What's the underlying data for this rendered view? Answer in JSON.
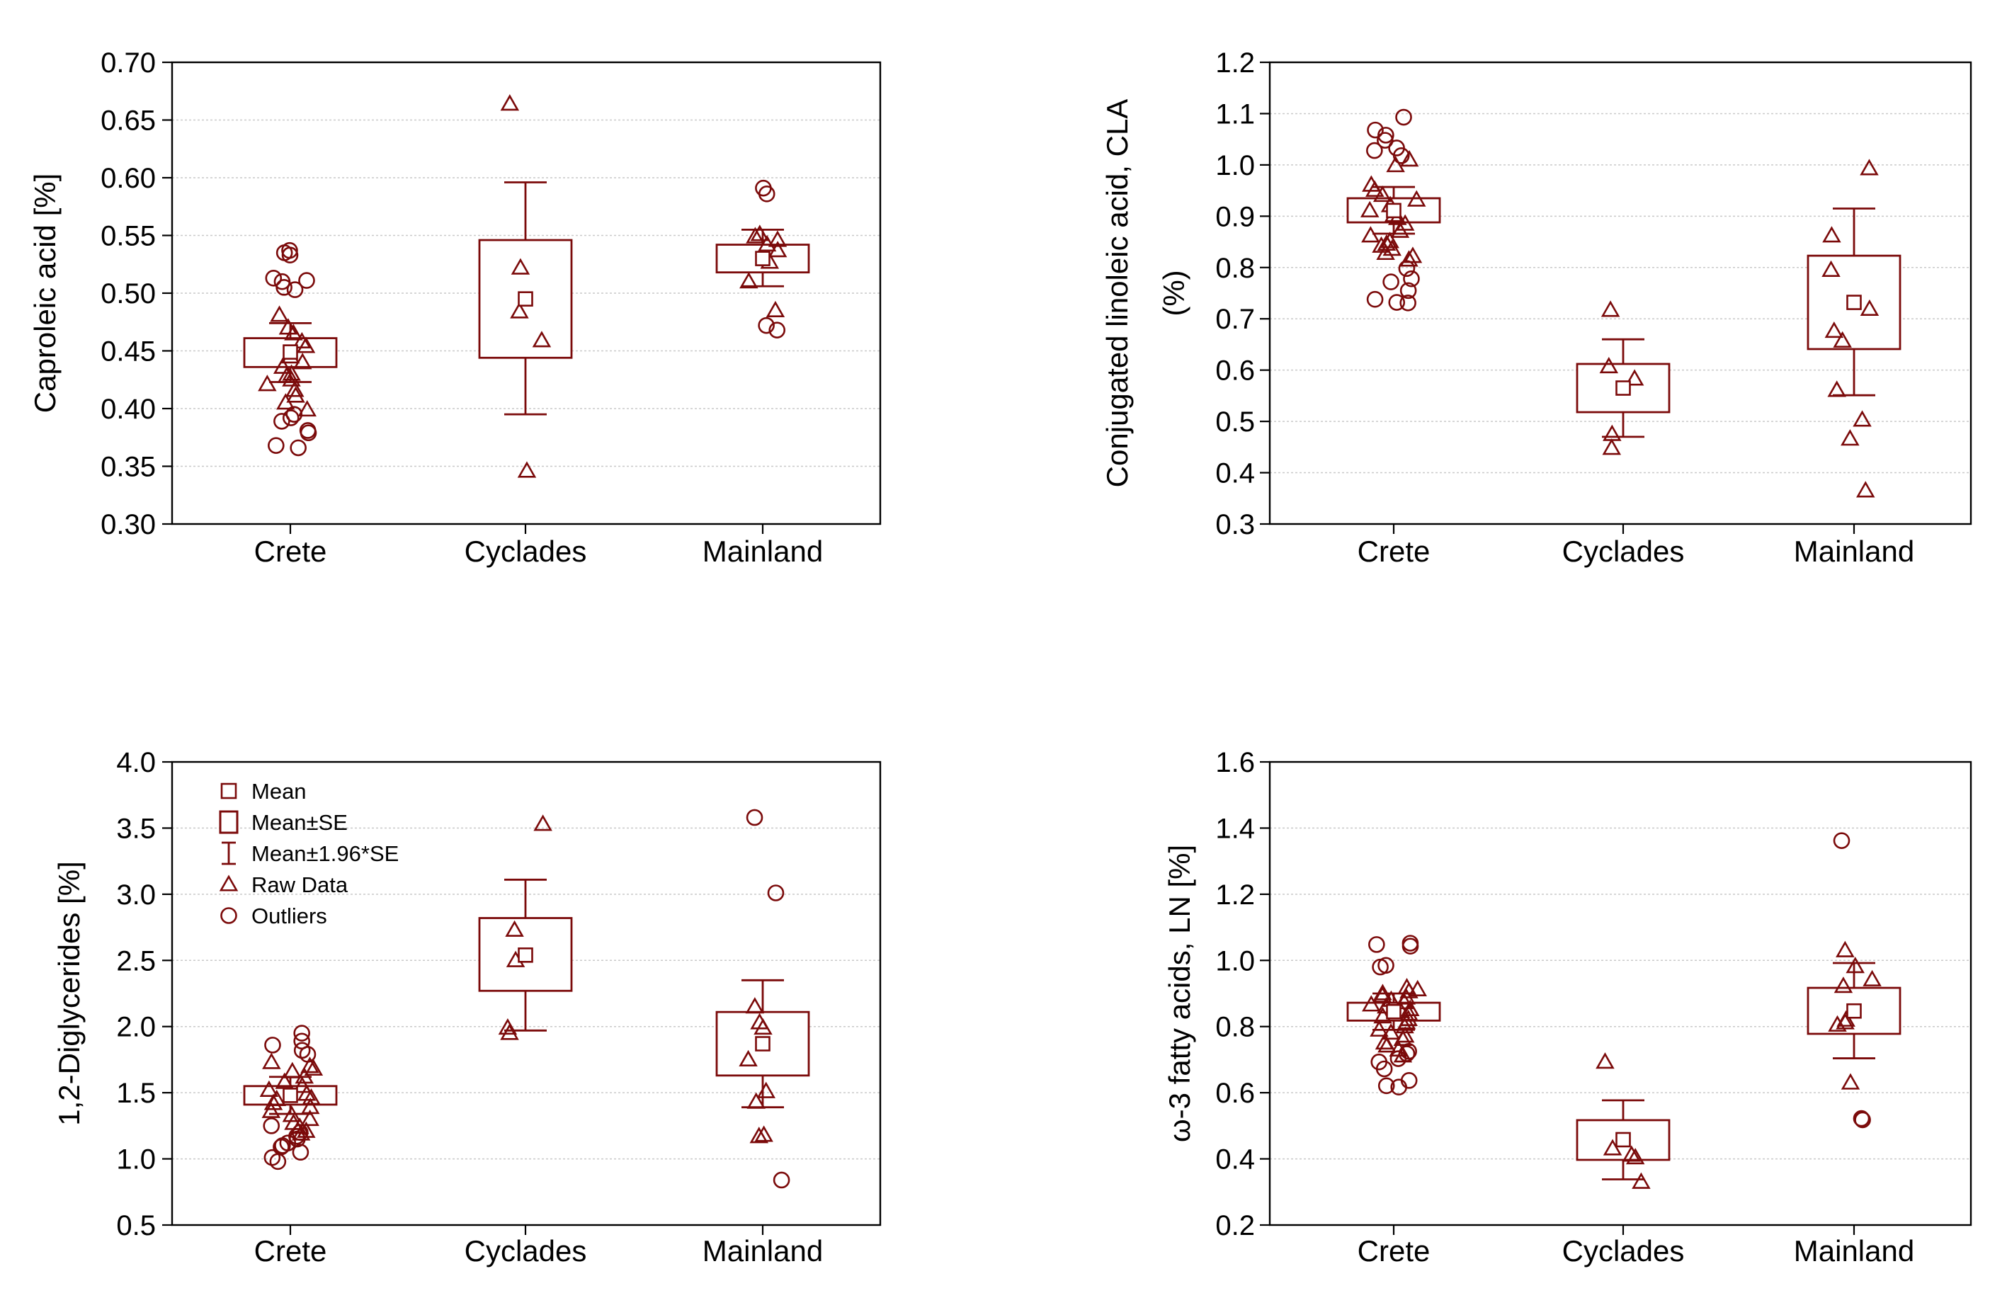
{
  "colors": {
    "mark": "#7b0a0a",
    "grid": "#c9c9c9",
    "axis": "#000000"
  },
  "legend": {
    "items": [
      {
        "symbol": "mean",
        "label": "Mean"
      },
      {
        "symbol": "box",
        "label": "Mean±SE"
      },
      {
        "symbol": "whisker",
        "label": "Mean±1.96*SE"
      },
      {
        "symbol": "triangle",
        "label": "Raw Data"
      },
      {
        "symbol": "circle",
        "label": "Outliers"
      }
    ]
  },
  "chart_data": [
    {
      "type": "box",
      "panel": "top-left",
      "ylabel": "Caproleic acid [%]",
      "ylim": [
        0.3,
        0.7
      ],
      "yticks": [
        "0.30",
        "0.35",
        "0.40",
        "0.45",
        "0.50",
        "0.55",
        "0.60",
        "0.65",
        "0.70"
      ],
      "categories": [
        "Crete",
        "Cyclades",
        "Mainland"
      ],
      "groups": [
        {
          "mean": 0.449,
          "se_low": 0.436,
          "se_high": 0.461,
          "ci_low": 0.423,
          "ci_high": 0.474,
          "raw": [
            0.458,
            0.465,
            0.47,
            0.481,
            0.454,
            0.44,
            0.445,
            0.43,
            0.425,
            0.421,
            0.416,
            0.411,
            0.405,
            0.399,
            0.436,
            0.428
          ],
          "outliers": [
            0.537,
            0.535,
            0.533,
            0.513,
            0.511,
            0.51,
            0.505,
            0.503,
            0.395,
            0.392,
            0.389,
            0.381,
            0.379,
            0.368,
            0.366
          ]
        },
        {
          "mean": 0.495,
          "se_low": 0.444,
          "se_high": 0.546,
          "ci_low": 0.395,
          "ci_high": 0.596,
          "raw": [
            0.664,
            0.522,
            0.484,
            0.459,
            0.346
          ],
          "outliers": []
        },
        {
          "mean": 0.53,
          "se_low": 0.518,
          "se_high": 0.542,
          "ci_low": 0.506,
          "ci_high": 0.555,
          "raw": [
            0.551,
            0.549,
            0.546,
            0.542,
            0.537,
            0.527,
            0.51,
            0.485
          ],
          "outliers": [
            0.591,
            0.586,
            0.472,
            0.468
          ]
        }
      ]
    },
    {
      "type": "box",
      "panel": "top-right",
      "ylabel_lines": [
        "Conjugated linoleic acid, CLA",
        "(%)"
      ],
      "ylim": [
        0.3,
        1.2
      ],
      "yticks": [
        "0.3",
        "0.4",
        "0.5",
        "0.6",
        "0.7",
        "0.8",
        "0.9",
        "1.0",
        "1.1",
        "1.2"
      ],
      "categories": [
        "Crete",
        "Cyclades",
        "Mainland"
      ],
      "groups": [
        {
          "mean": 0.911,
          "se_low": 0.888,
          "se_high": 0.935,
          "ci_low": 0.866,
          "ci_high": 0.957,
          "raw": [
            1.01,
            0.999,
            0.961,
            0.951,
            0.941,
            0.932,
            0.921,
            0.911,
            0.902,
            0.896,
            0.885,
            0.871,
            0.862,
            0.851,
            0.846,
            0.842,
            0.836,
            0.828,
            0.822,
            0.815
          ],
          "outliers": [
            1.093,
            1.068,
            1.058,
            1.048,
            1.033,
            1.028,
            1.018,
            0.798,
            0.778,
            0.772,
            0.755,
            0.738,
            0.732,
            0.731
          ]
        },
        {
          "mean": 0.565,
          "se_low": 0.518,
          "se_high": 0.612,
          "ci_low": 0.47,
          "ci_high": 0.66,
          "raw": [
            0.717,
            0.607,
            0.583,
            0.475,
            0.448
          ],
          "outliers": []
        },
        {
          "mean": 0.732,
          "se_low": 0.641,
          "se_high": 0.823,
          "ci_low": 0.551,
          "ci_high": 0.915,
          "raw": [
            0.993,
            0.862,
            0.795,
            0.719,
            0.676,
            0.657,
            0.561,
            0.503,
            0.466,
            0.365
          ],
          "outliers": []
        }
      ]
    },
    {
      "type": "box",
      "panel": "bottom-left",
      "ylabel": "1,2-Diglycerides [%]",
      "ylim": [
        0.5,
        4.0
      ],
      "yticks": [
        "0.5",
        "1.0",
        "1.5",
        "2.0",
        "2.5",
        "3.0",
        "3.5",
        "4.0"
      ],
      "categories": [
        "Crete",
        "Cyclades",
        "Mainland"
      ],
      "groups": [
        {
          "mean": 1.48,
          "se_low": 1.41,
          "se_high": 1.55,
          "ci_low": 1.34,
          "ci_high": 1.62,
          "raw": [
            1.73,
            1.7,
            1.66,
            1.62,
            1.58,
            1.55,
            1.52,
            1.49,
            1.46,
            1.42,
            1.39,
            1.36,
            1.33,
            1.3,
            1.27,
            1.24,
            1.21,
            1.19,
            1.68,
            1.45
          ],
          "outliers": [
            1.95,
            1.89,
            1.86,
            1.82,
            1.79,
            1.25,
            1.2,
            1.17,
            1.15,
            1.12,
            1.1,
            1.09,
            1.05,
            1.01,
            0.98
          ]
        },
        {
          "mean": 2.54,
          "se_low": 2.27,
          "se_high": 2.82,
          "ci_low": 1.97,
          "ci_high": 3.11,
          "raw": [
            3.53,
            2.73,
            2.5,
            1.99,
            1.95
          ],
          "outliers": []
        },
        {
          "mean": 1.87,
          "se_low": 1.63,
          "se_high": 2.11,
          "ci_low": 1.39,
          "ci_high": 2.35,
          "raw": [
            2.15,
            2.03,
            1.99,
            1.75,
            1.51,
            1.43,
            1.18,
            1.17
          ],
          "outliers": [
            3.58,
            3.01,
            0.84
          ]
        }
      ]
    },
    {
      "type": "box",
      "panel": "bottom-right",
      "ylabel": "ω-3 fatty acids, LN [%]",
      "ylim": [
        0.2,
        1.6
      ],
      "yticks": [
        "0.2",
        "0.4",
        "0.6",
        "0.8",
        "1.0",
        "1.2",
        "1.4",
        "1.6"
      ],
      "categories": [
        "Crete",
        "Cyclades",
        "Mainland"
      ],
      "groups": [
        {
          "mean": 0.845,
          "se_low": 0.818,
          "se_high": 0.872,
          "ci_low": 0.79,
          "ci_high": 0.9,
          "raw": [
            0.918,
            0.912,
            0.906,
            0.9,
            0.893,
            0.887,
            0.88,
            0.873,
            0.866,
            0.86,
            0.852,
            0.846,
            0.838,
            0.83,
            0.822,
            0.812,
            0.8,
            0.79,
            0.781,
            0.772,
            0.762,
            0.751,
            0.742,
            0.73,
            0.712
          ],
          "outliers": [
            1.052,
            1.048,
            1.043,
            0.985,
            0.98,
            0.725,
            0.718,
            0.703,
            0.693,
            0.672,
            0.637,
            0.621,
            0.617
          ]
        },
        {
          "mean": 0.458,
          "se_low": 0.397,
          "se_high": 0.517,
          "ci_low": 0.338,
          "ci_high": 0.577,
          "raw": [
            0.693,
            0.431,
            0.412,
            0.404,
            0.33
          ],
          "outliers": []
        },
        {
          "mean": 0.847,
          "se_low": 0.778,
          "se_high": 0.917,
          "ci_low": 0.704,
          "ci_high": 0.992,
          "raw": [
            1.03,
            0.982,
            0.942,
            0.922,
            0.82,
            0.812,
            0.805,
            0.63
          ],
          "outliers": [
            1.362,
            0.522,
            0.518
          ]
        }
      ]
    }
  ]
}
